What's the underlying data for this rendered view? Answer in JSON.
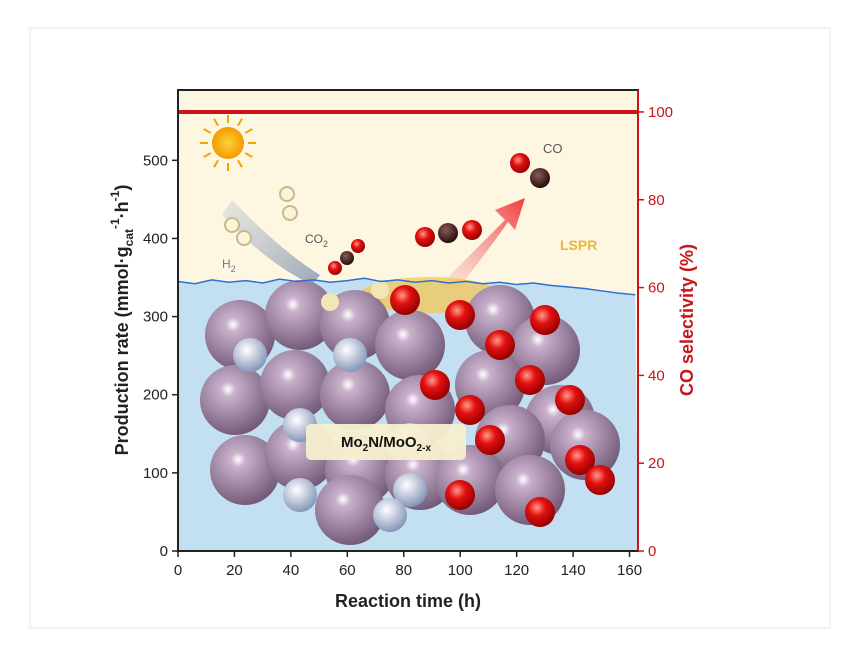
{
  "chart_data": {
    "type": "line",
    "x_label": "Reaction time (h)",
    "y_label_parts": [
      "Production rate (mmol·g",
      "cat",
      "-1",
      "·h",
      "-1",
      ")"
    ],
    "y2_label": "CO selectivity (%)",
    "xlim": [
      0,
      163
    ],
    "xticks": [
      0,
      20,
      40,
      60,
      80,
      100,
      120,
      140,
      160
    ],
    "ylim": [
      0,
      590
    ],
    "yticks": [
      0,
      100,
      200,
      300,
      400,
      500
    ],
    "y2lim": [
      0,
      105
    ],
    "y2ticks": [
      0,
      20,
      40,
      60,
      80,
      100
    ],
    "series": [
      {
        "color": "#2f6fd0",
        "x": [
          0,
          6,
          12,
          18,
          24,
          30,
          36,
          42,
          48,
          54,
          60,
          66,
          72,
          78,
          84,
          90,
          96,
          102,
          108,
          114,
          120,
          126,
          132,
          138,
          144,
          150,
          156,
          162
        ],
        "values": [
          345,
          342,
          347,
          344,
          346,
          343,
          348,
          345,
          347,
          344,
          346,
          349,
          345,
          347,
          344,
          346,
          343,
          345,
          342,
          344,
          341,
          343,
          340,
          338,
          336,
          333,
          330,
          328
        ]
      },
      {
        "color": "#d0121b",
        "axis": "y2",
        "x": [
          0,
          163
        ],
        "values": [
          100,
          100
        ]
      }
    ],
    "annotations": {
      "co": "CO",
      "co2": [
        "CO",
        "2"
      ],
      "h2": [
        "H",
        "2"
      ],
      "lspr": "LSPR",
      "material": [
        "Mo",
        "2",
        "N/MoO",
        "2-x"
      ]
    }
  }
}
